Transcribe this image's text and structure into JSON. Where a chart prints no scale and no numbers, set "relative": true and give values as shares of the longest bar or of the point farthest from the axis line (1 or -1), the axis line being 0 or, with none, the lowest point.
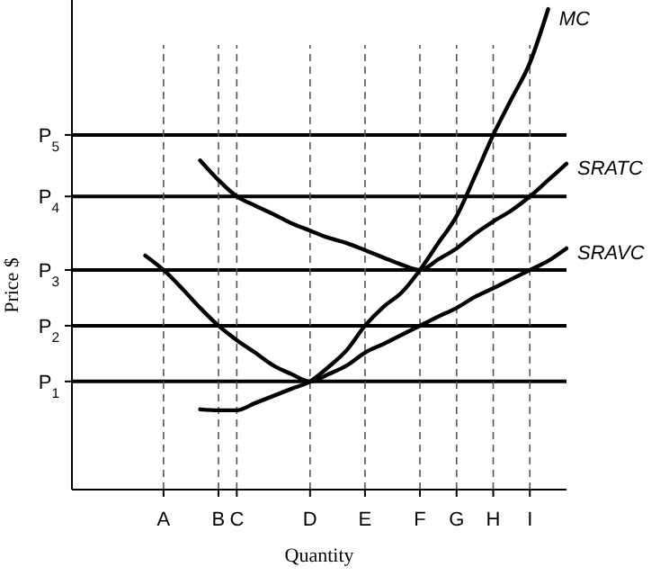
{
  "chart_data": {
    "type": "line",
    "xlabel": "Quantity",
    "ylabel": "Price $",
    "relative": true,
    "marker": "none",
    "categories": [
      null,
      null,
      null,
      null,
      null,
      "A",
      null,
      null,
      "B",
      "C",
      null,
      null,
      null,
      "D",
      null,
      null,
      "E",
      null,
      null,
      "F",
      null,
      "G",
      null,
      "H",
      null,
      "I",
      null,
      null
    ],
    "ref_lines": [
      {
        "axis": "y",
        "value": 0.225,
        "label": "P$_{1}$",
        "color": "#000000",
        "line_style": "solid"
      },
      {
        "axis": "y",
        "value": 0.341,
        "label": "P$_{2}$",
        "color": "#000000",
        "line_style": "solid"
      },
      {
        "axis": "y",
        "value": 0.457,
        "label": "P$_{3}$",
        "color": "#000000",
        "line_style": "solid"
      },
      {
        "axis": "y",
        "value": 0.61,
        "label": "P$_{4}$",
        "color": "#000000",
        "line_style": "solid"
      },
      {
        "axis": "y",
        "value": 0.738,
        "label": "P$_{5}$",
        "color": "#000000",
        "line_style": "solid"
      },
      {
        "axis": "x",
        "value": "A",
        "color": "#555555",
        "line_style": "dashed"
      },
      {
        "axis": "x",
        "value": "B",
        "color": "#555555",
        "line_style": "dashed"
      },
      {
        "axis": "x",
        "value": "C",
        "color": "#555555",
        "line_style": "dashed"
      },
      {
        "axis": "x",
        "value": "D",
        "color": "#555555",
        "line_style": "dashed"
      },
      {
        "axis": "x",
        "value": "E",
        "color": "#555555",
        "line_style": "dashed"
      },
      {
        "axis": "x",
        "value": "F",
        "color": "#555555",
        "line_style": "dashed"
      },
      {
        "axis": "x",
        "value": "G",
        "color": "#555555",
        "line_style": "dashed"
      },
      {
        "axis": "x",
        "value": "H",
        "color": "#555555",
        "line_style": "dashed"
      },
      {
        "axis": "x",
        "value": "I",
        "color": "#555555",
        "line_style": "dashed"
      }
    ],
    "series": [
      {
        "name": "MC",
        "color": "#000000",
        "line_style": "solid",
        "values": [
          null,
          null,
          null,
          null,
          null,
          null,
          null,
          0.167,
          0.165,
          0.165,
          0.18,
          0.195,
          0.21,
          0.225,
          0.255,
          0.29,
          0.341,
          0.38,
          0.41,
          0.457,
          0.513,
          0.569,
          0.652,
          0.738,
          0.813,
          0.888,
          1,
          null
        ]
      },
      {
        "name": "SRATC",
        "color": "#000000",
        "line_style": "solid",
        "values": [
          null,
          null,
          null,
          null,
          null,
          null,
          null,
          0.685,
          0.644,
          0.61,
          0.591,
          0.573,
          0.554,
          0.539,
          0.524,
          0.513,
          0.498,
          0.483,
          0.468,
          0.457,
          0.479,
          0.502,
          0.532,
          0.558,
          0.581,
          0.61,
          0.644,
          0.678
        ]
      },
      {
        "name": "SRAVC",
        "color": "#000000",
        "line_style": "solid",
        "values": [
          null,
          null,
          null,
          null,
          0.487,
          0.457,
          0.419,
          0.378,
          0.341,
          0.311,
          0.285,
          0.258,
          0.24,
          0.225,
          0.24,
          0.258,
          0.285,
          0.303,
          0.322,
          0.341,
          0.36,
          0.378,
          0.401,
          0.419,
          0.438,
          0.457,
          0.476,
          0.502
        ]
      }
    ]
  }
}
